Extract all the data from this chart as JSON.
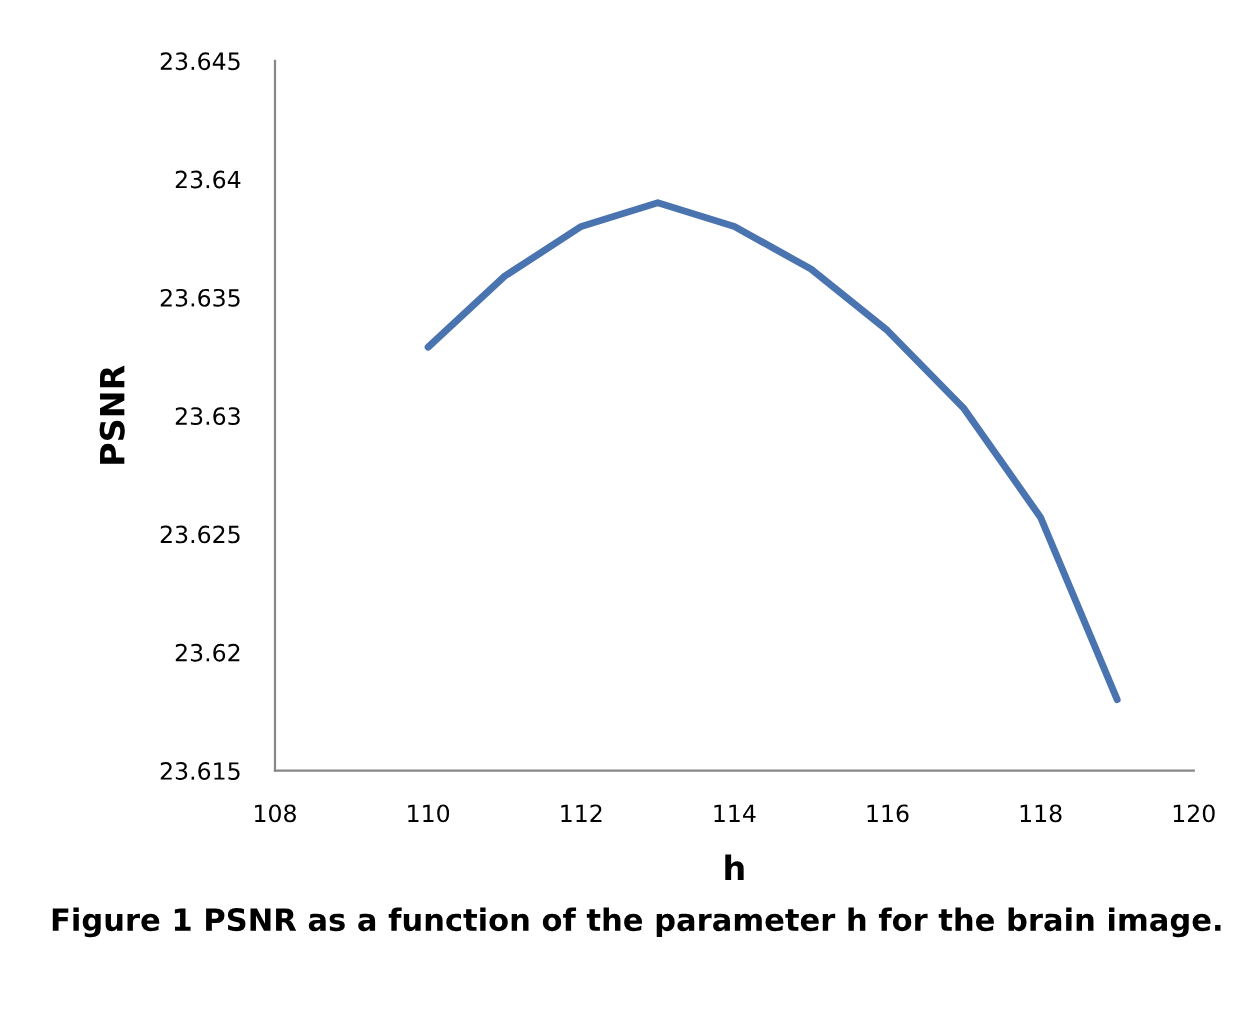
{
  "chart_data": {
    "type": "line",
    "xlabel": "h",
    "ylabel": "PSNR",
    "x": [
      110,
      111,
      112,
      113,
      114,
      115,
      116,
      117,
      118,
      119
    ],
    "series": [
      {
        "color": "#4a74b0",
        "values": [
          23.6329,
          23.6359,
          23.638,
          23.639,
          23.638,
          23.6362,
          23.6336,
          23.6303,
          23.6257,
          23.618
        ]
      }
    ],
    "xlim": [
      108,
      120
    ],
    "xticks": [
      108,
      110,
      112,
      114,
      116,
      118,
      120
    ],
    "ylim": [
      23.615,
      23.645
    ],
    "yticks": [
      23.615,
      23.62,
      23.625,
      23.63,
      23.635,
      23.64,
      23.645
    ],
    "grid": false,
    "marker": "none",
    "line_style": "solid",
    "annotations": [
      "Figure 1 PSNR as a function of the parameter h for the brain image."
    ]
  }
}
